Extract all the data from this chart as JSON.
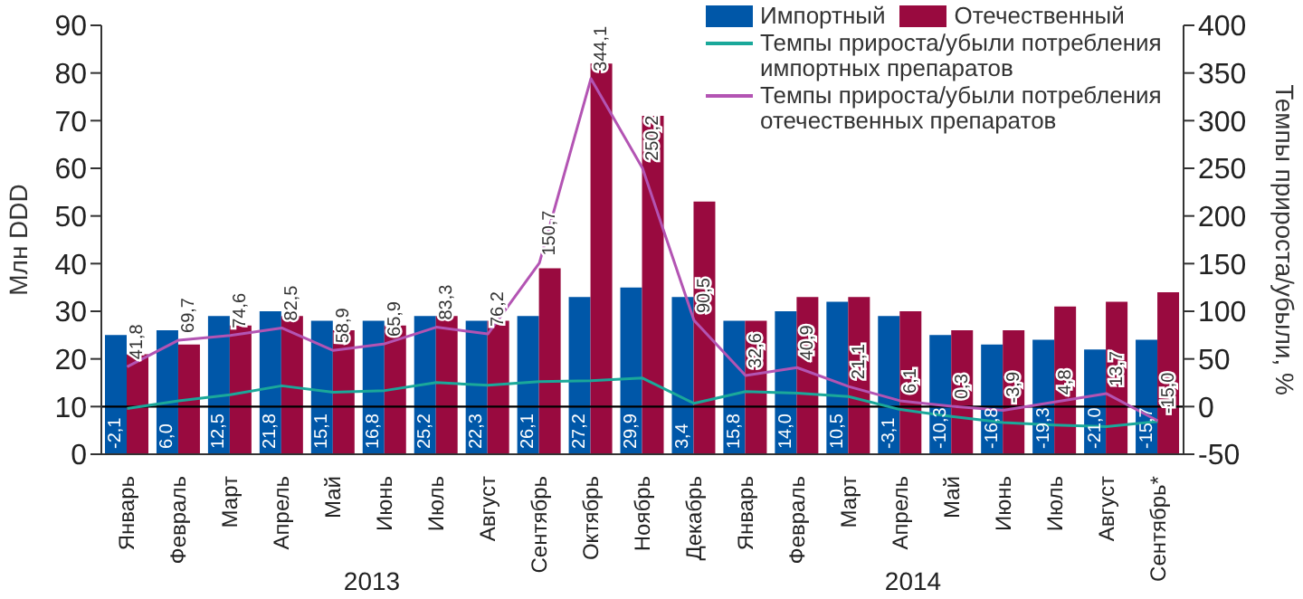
{
  "chart_data": {
    "type": "bar",
    "ylabel": "Млн DDD",
    "y2label": "Темпы прироста/убыли, %",
    "categories": [
      "Январь",
      "Февраль",
      "Март",
      "Апрель",
      "Май",
      "Июнь",
      "Июль",
      "Август",
      "Сентябрь",
      "Октябрь",
      "Ноябрь",
      "Декабрь",
      "Январь",
      "Февраль",
      "Март",
      "Апрель",
      "Май",
      "Июнь",
      "Июль",
      "Август",
      "Сентябрь*"
    ],
    "series": [
      {
        "name": "Импортный",
        "color": "#0057a8",
        "values": [
          25,
          26,
          29,
          30,
          28,
          28,
          29,
          28,
          29,
          33,
          35,
          33,
          28,
          30,
          32,
          29,
          25,
          23,
          24,
          22,
          24
        ]
      },
      {
        "name": "Отечественный",
        "color": "#990a3f",
        "values": [
          21,
          23,
          27,
          29,
          26,
          27,
          29,
          28,
          39,
          82,
          71,
          53,
          28,
          33,
          33,
          30,
          26,
          26,
          31,
          32,
          34
        ]
      },
      {
        "name": "Темпы прироста/убыли потребления импортных препаратов",
        "type": "line",
        "axis": "y2",
        "color": "#1aa89a",
        "values": [
          -2.1,
          6.0,
          12.5,
          21.8,
          15.1,
          16.8,
          25.2,
          22.3,
          26.1,
          27.2,
          29.9,
          3.4,
          15.8,
          14.0,
          10.5,
          -3.1,
          -10.3,
          -16.8,
          -19.3,
          -21.0,
          -15.7
        ],
        "value_labels": [
          "-2,1",
          "6,0",
          "12,5",
          "21,8",
          "15,1",
          "16,8",
          "25,2",
          "22,3",
          "26,1",
          "27,2",
          "29,9",
          "3,4",
          "15,8",
          "14,0",
          "10,5",
          "-3,1",
          "-10,3",
          "-16,8",
          "-19,3",
          "-21,0",
          "-15,7"
        ]
      },
      {
        "name": "Темпы прироста/убыли потребления отечественных препаратов",
        "type": "line",
        "axis": "y2",
        "color": "#b354b3",
        "values": [
          41.8,
          69.7,
          74.6,
          82.5,
          58.9,
          65.9,
          83.3,
          76.2,
          150.7,
          344.1,
          250.2,
          90.5,
          32.6,
          40.9,
          21.1,
          6.1,
          0.3,
          -3.9,
          4.8,
          13.7,
          -15.0
        ],
        "value_labels": [
          "41,8",
          "69,7",
          "74,6",
          "82,5",
          "58,9",
          "65,9",
          "83,3",
          "76,2",
          "150,7",
          "344,1",
          "250,2",
          "90,5",
          "32,6",
          "40,9",
          "21,1",
          "6,1",
          "0,3",
          "-3,9",
          "4,8",
          "13,7",
          "-15,0"
        ]
      }
    ],
    "ylim": [
      0,
      90
    ],
    "yticks": [
      0,
      10,
      20,
      30,
      40,
      50,
      60,
      70,
      80,
      90
    ],
    "y2lim": [
      -50,
      400
    ],
    "y2ticks": [
      -50,
      0,
      50,
      100,
      150,
      200,
      250,
      300,
      350,
      400
    ],
    "ref_lines": [
      {
        "axis": "y2",
        "value": 0,
        "color": "#000000"
      }
    ],
    "annotations": [
      "2013",
      "2014"
    ],
    "legend": "top right",
    "marker": "none"
  }
}
